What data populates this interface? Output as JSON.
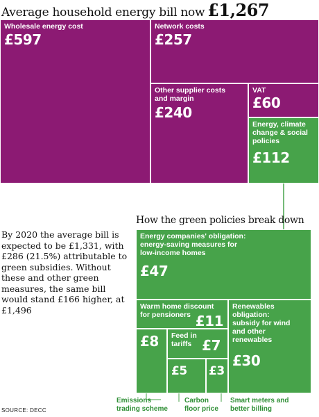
{
  "header": {
    "title": "Average household energy bill now",
    "total": "£1,267"
  },
  "chart_data": {
    "type": "treemap",
    "title": "Average household energy bill now £1,267",
    "currency": "GBP",
    "total": 1267,
    "segments": [
      {
        "name": "Wholesale energy cost",
        "value": 597,
        "display": "£597"
      },
      {
        "name": "Network costs",
        "value": 257,
        "display": "£257"
      },
      {
        "name": "Other supplier costs and margin",
        "value": 240,
        "display": "£240"
      },
      {
        "name": "VAT",
        "value": 60,
        "display": "£60"
      },
      {
        "name": "Energy, climate change & social policies",
        "value": 112,
        "display": "£112"
      }
    ],
    "breakdown": {
      "title": "How the green policies break down",
      "parent": "Energy, climate change & social policies",
      "segments": [
        {
          "name": "Energy companies' obligation: energy-saving measures for low-income homes",
          "value": 47,
          "display": "£47"
        },
        {
          "name": "Warm home discount for pensioners",
          "value": 11,
          "display": "£11"
        },
        {
          "name": "Renewables obligation: subsidy for wind and other renewables",
          "value": 30,
          "display": "£30"
        },
        {
          "name": "Emissions trading scheme",
          "value": 8,
          "display": "£8"
        },
        {
          "name": "Feed in tariffs",
          "value": 7,
          "display": "£7"
        },
        {
          "name": "Carbon floor price",
          "value": 5,
          "display": "£5"
        },
        {
          "name": "Smart meters and better billing",
          "value": 3,
          "display": "£3"
        }
      ]
    },
    "colors": {
      "bill": "#8c1a73",
      "green_policies": "#47a34a",
      "callout_text": "#2f8f36"
    }
  },
  "labels": {
    "wholesale": "Wholesale energy cost",
    "network": "Network costs",
    "other_l1": "Other supplier costs",
    "other_l2": "and margin",
    "vat": "VAT",
    "policy_l1": "Energy, climate",
    "policy_l2": "change & social",
    "policy_l3": "policies",
    "eco_l1": "Energy companies' obligation:",
    "eco_l2": "energy-saving measures for",
    "eco_l3": "low-income homes",
    "warm_l1": "Warm home discount",
    "warm_l2": "for pensioners",
    "renew_l1": "Renewables",
    "renew_l2": "obligation:",
    "renew_l3": "subsidy for wind",
    "renew_l4": "and other",
    "renew_l5": "renewables",
    "fit_l1": "Feed in",
    "fit_l2": "tariffs"
  },
  "callouts": {
    "ets_l1": "Emissions",
    "ets_l2": "trading scheme",
    "cfp_l1": "Carbon",
    "cfp_l2": "floor price",
    "smart_l1": "Smart meters and",
    "smart_l2": "better billing"
  },
  "note": "By 2020 the average bill is expected to be £1,331, with £286 (21.5%) attributable to green subsidies. Without these and other green measures, the same bill would stand £166 higher, at £1,496",
  "source": "SOURCE: DECC"
}
